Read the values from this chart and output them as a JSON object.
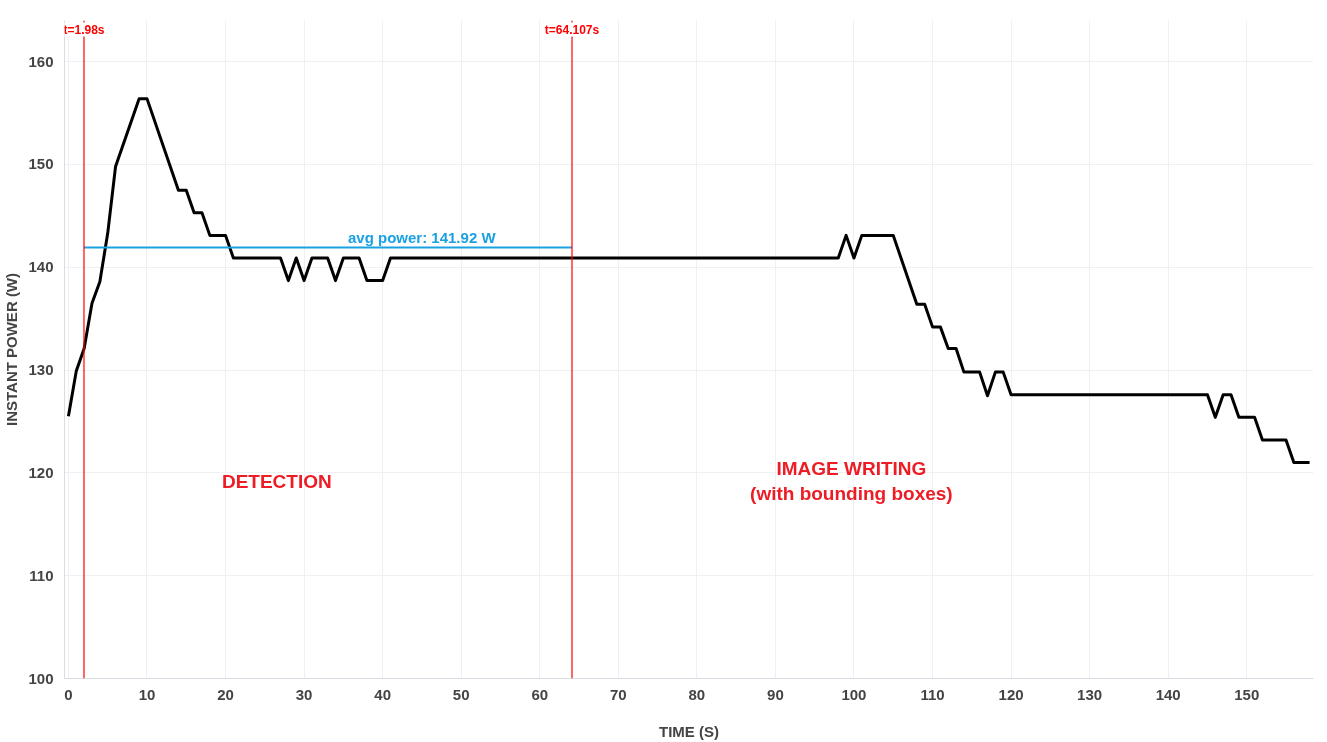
{
  "chart_data": {
    "type": "line",
    "xlabel": "TIME (S)",
    "ylabel": "INSTANT POWER (W)",
    "xlim": [
      -0.5,
      158.5
    ],
    "ylim": [
      100,
      164
    ],
    "xticks": [
      0,
      10,
      20,
      30,
      40,
      50,
      60,
      70,
      80,
      90,
      100,
      110,
      120,
      130,
      140,
      150
    ],
    "yticks": [
      100,
      110,
      120,
      130,
      140,
      150,
      160
    ],
    "grid": true,
    "marker": "none",
    "line_style": "solid",
    "series": [
      {
        "color": "#000000",
        "x": [
          0,
          1,
          2,
          3,
          4,
          5,
          6,
          9,
          10,
          14,
          15,
          16,
          17,
          18,
          20,
          21,
          27,
          28,
          29,
          30,
          31,
          33,
          34,
          35,
          37,
          38,
          40,
          41,
          98,
          99,
          100,
          101,
          105,
          108,
          109,
          110,
          111,
          112,
          113,
          114,
          116,
          117,
          118,
          119,
          120,
          145,
          146,
          147,
          148,
          149,
          151,
          152,
          155,
          156,
          158
        ],
        "values": [
          125.5,
          129.9,
          132.1,
          136.5,
          138.6,
          143.3,
          149.8,
          156.4,
          156.4,
          147.5,
          147.5,
          145.3,
          145.3,
          143.1,
          143.1,
          140.9,
          140.9,
          138.7,
          140.9,
          138.7,
          140.9,
          140.9,
          138.7,
          140.9,
          140.9,
          138.7,
          138.7,
          140.9,
          140.9,
          143.1,
          140.9,
          143.1,
          143.1,
          136.4,
          136.4,
          134.2,
          134.2,
          132.1,
          132.1,
          129.8,
          129.8,
          127.5,
          129.8,
          129.8,
          127.6,
          127.6,
          125.4,
          127.6,
          127.6,
          125.4,
          125.4,
          123.2,
          123.2,
          121.0,
          121.0
        ]
      },
      {
        "name": "avg power: 141.92 W",
        "color": "#1ba1e2",
        "x": [
          1.98,
          64.107
        ],
        "values": [
          141.92,
          141.92
        ]
      }
    ],
    "ref_lines": [
      {
        "axis": "x",
        "value": 1.98,
        "label": "t=1.98s",
        "color": "#ff0000"
      },
      {
        "axis": "x",
        "value": 64.107,
        "label": "t=64.107s",
        "color": "#ff0000"
      }
    ],
    "annotations": [
      "DETECTION",
      "IMAGE WRITING\n(with bounding boxes)"
    ]
  }
}
